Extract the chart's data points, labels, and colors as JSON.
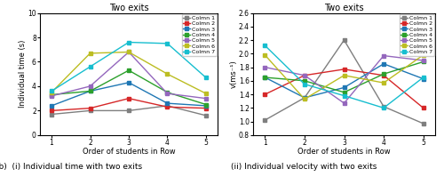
{
  "title": "Two exits",
  "xlabel": "Order of students in Row",
  "x": [
    1,
    2,
    3,
    4,
    5
  ],
  "time_ylabel": "Individual time (s)",
  "time_ylim": [
    0,
    10
  ],
  "time_yticks": [
    0,
    2,
    4,
    6,
    8,
    10
  ],
  "time_series": {
    "Colmn 1": [
      1.7,
      2.0,
      2.0,
      2.4,
      1.6
    ],
    "Colmn 2": [
      2.0,
      2.2,
      3.0,
      2.3,
      2.2
    ],
    "Colmn 3": [
      2.4,
      3.6,
      4.3,
      2.6,
      2.4
    ],
    "Colmn 4": [
      3.3,
      3.6,
      5.3,
      3.5,
      2.5
    ],
    "Colmn 5": [
      3.2,
      4.0,
      6.8,
      3.4,
      3.0
    ],
    "Colmn 6": [
      3.5,
      6.7,
      6.8,
      5.0,
      3.4
    ],
    "Colmn 7": [
      3.6,
      5.6,
      7.6,
      7.5,
      4.7
    ]
  },
  "time_colors": {
    "Colmn 1": "#7f7f7f",
    "Colmn 2": "#d62728",
    "Colmn 3": "#1f77b4",
    "Colmn 4": "#2ca02c",
    "Colmn 5": "#9467bd",
    "Colmn 6": "#bcbd22",
    "Colmn 7": "#17becf"
  },
  "vel_ylabel": "v(ms⁻¹)",
  "vel_ylim": [
    0.8,
    2.6
  ],
  "vel_yticks": [
    0.8,
    1.0,
    1.2,
    1.4,
    1.6,
    1.8,
    2.0,
    2.2,
    2.4,
    2.6
  ],
  "vel_series": {
    "Colmn 1": [
      1.02,
      1.35,
      2.2,
      1.22,
      0.97
    ],
    "Colmn 2": [
      1.4,
      1.68,
      1.77,
      1.68,
      1.2
    ],
    "Colmn 3": [
      1.65,
      1.35,
      1.5,
      1.85,
      1.63
    ],
    "Colmn 4": [
      1.65,
      1.6,
      1.43,
      1.7,
      1.88
    ],
    "Colmn 5": [
      1.8,
      1.68,
      1.27,
      1.97,
      1.9
    ],
    "Colmn 6": [
      1.98,
      1.33,
      1.68,
      1.57,
      1.98
    ],
    "Colmn 7": [
      2.12,
      1.55,
      1.38,
      1.2,
      1.65
    ]
  },
  "vel_colors": {
    "Colmn 1": "#7f7f7f",
    "Colmn 2": "#d62728",
    "Colmn 3": "#1f77b4",
    "Colmn 4": "#2ca02c",
    "Colmn 5": "#9467bd",
    "Colmn 6": "#bcbd22",
    "Colmn 7": "#17becf"
  },
  "caption_b": "(b)  (i) Individual time with two exits",
  "caption_ii": "(ii) Individual velocity with two exits",
  "marker": "s",
  "markersize": 3,
  "linewidth": 1.0,
  "legend_fontsize": 4.5,
  "tick_fontsize": 5.5,
  "label_fontsize": 6.0,
  "title_fontsize": 7.0
}
